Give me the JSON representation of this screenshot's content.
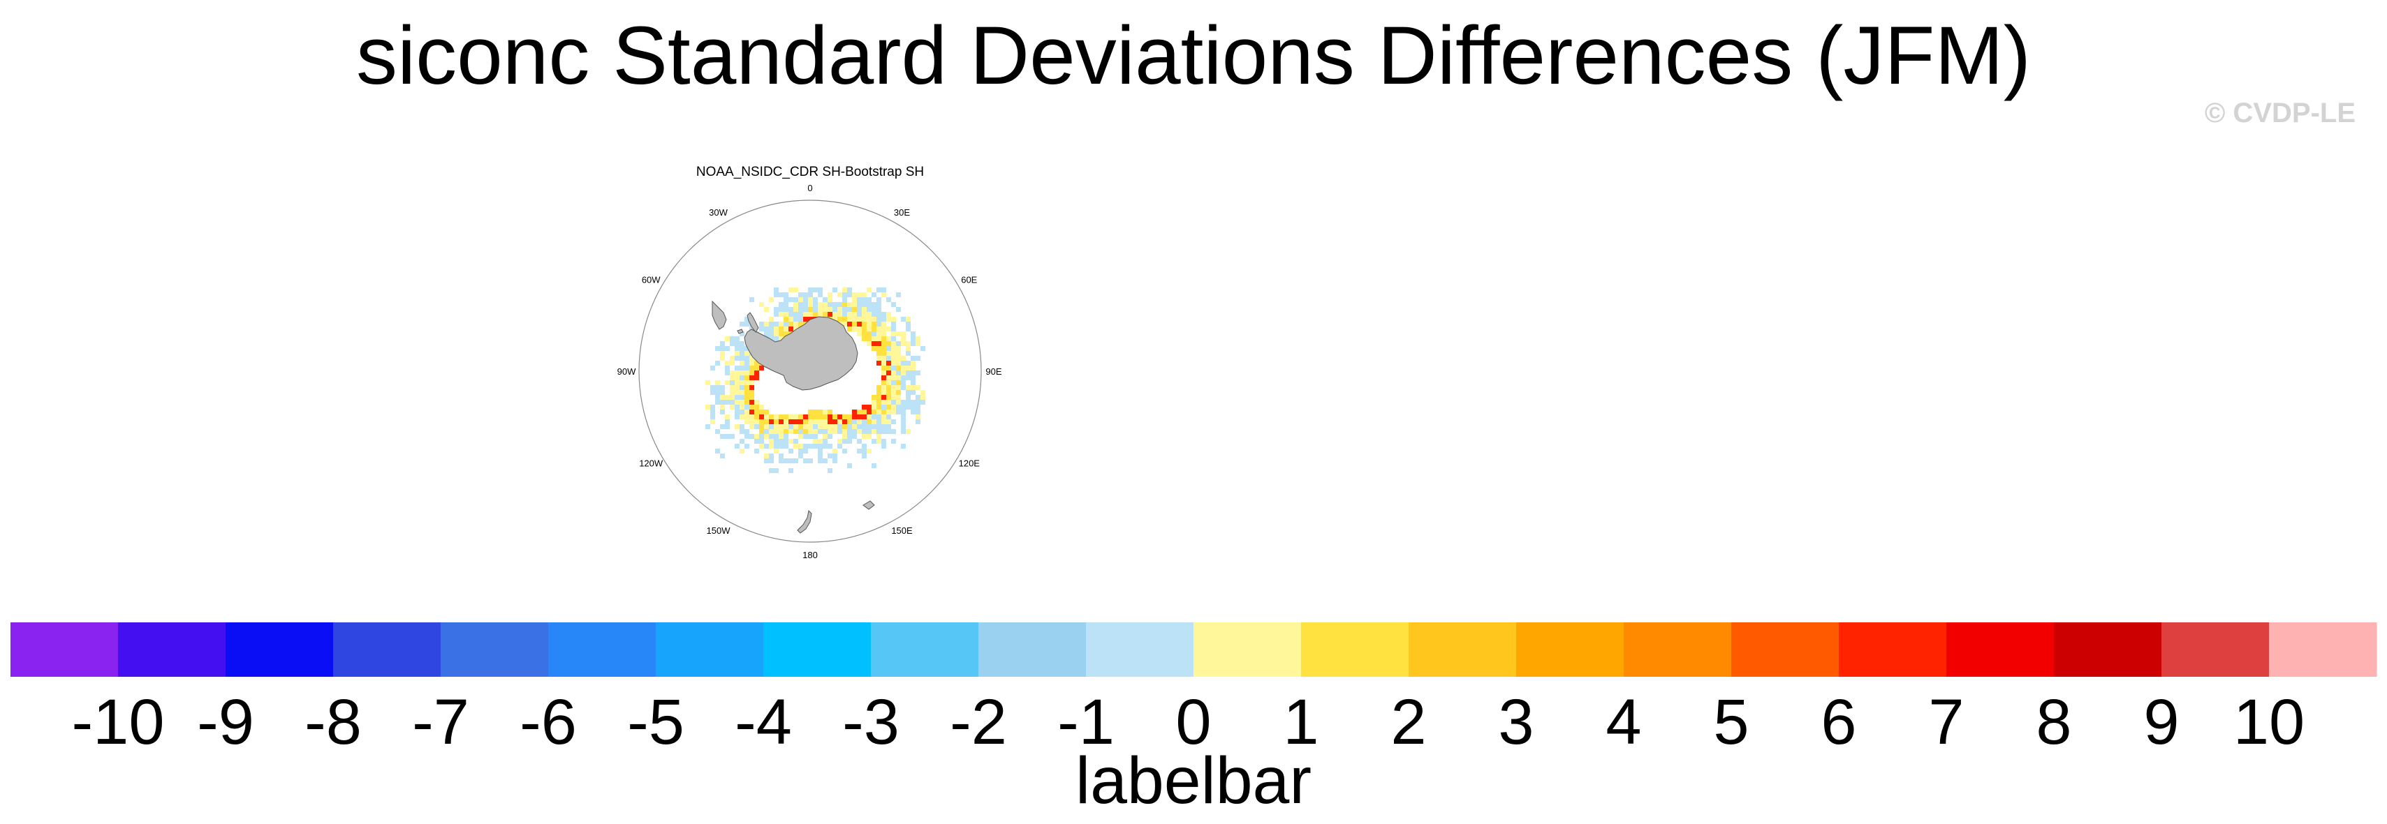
{
  "title": "siconc Standard Deviations Differences (JFM)",
  "credit": "© CVDP-LE",
  "panel": {
    "title": "NOAA_NSIDC_CDR SH-Bootstrap SH",
    "longitude_labels": [
      {
        "text": "0",
        "lon": 0
      },
      {
        "text": "30E",
        "lon": 30
      },
      {
        "text": "60E",
        "lon": 60
      },
      {
        "text": "90E",
        "lon": 90
      },
      {
        "text": "120E",
        "lon": 120
      },
      {
        "text": "150E",
        "lon": 150
      },
      {
        "text": "180",
        "lon": 180
      },
      {
        "text": "150W",
        "lon": -150
      },
      {
        "text": "120W",
        "lon": -120
      },
      {
        "text": "90W",
        "lon": -90
      },
      {
        "text": "60W",
        "lon": -60
      },
      {
        "text": "30W",
        "lon": -30
      }
    ],
    "land_color": "#bebebe",
    "projection": "south-polar-stereographic"
  },
  "labelbar": {
    "title": "labelbar",
    "tick_labels": [
      "-10",
      "-9",
      "-8",
      "-7",
      "-6",
      "-5",
      "-4",
      "-3",
      "-2",
      "-1",
      "0",
      "1",
      "2",
      "3",
      "4",
      "5",
      "6",
      "7",
      "8",
      "9",
      "10"
    ],
    "colors": [
      "#8a22f0",
      "#4410f2",
      "#0a0ef5",
      "#2f47e0",
      "#3a72e6",
      "#2887f8",
      "#16a4fc",
      "#00c0ff",
      "#55c6f6",
      "#9ad0f0",
      "#bbe2f6",
      "#fff799",
      "#ffe140",
      "#ffc61e",
      "#ffa600",
      "#ff8a00",
      "#ff5a00",
      "#ff2300",
      "#f20000",
      "#cc0000",
      "#de4040",
      "#ffb2b2"
    ]
  }
}
